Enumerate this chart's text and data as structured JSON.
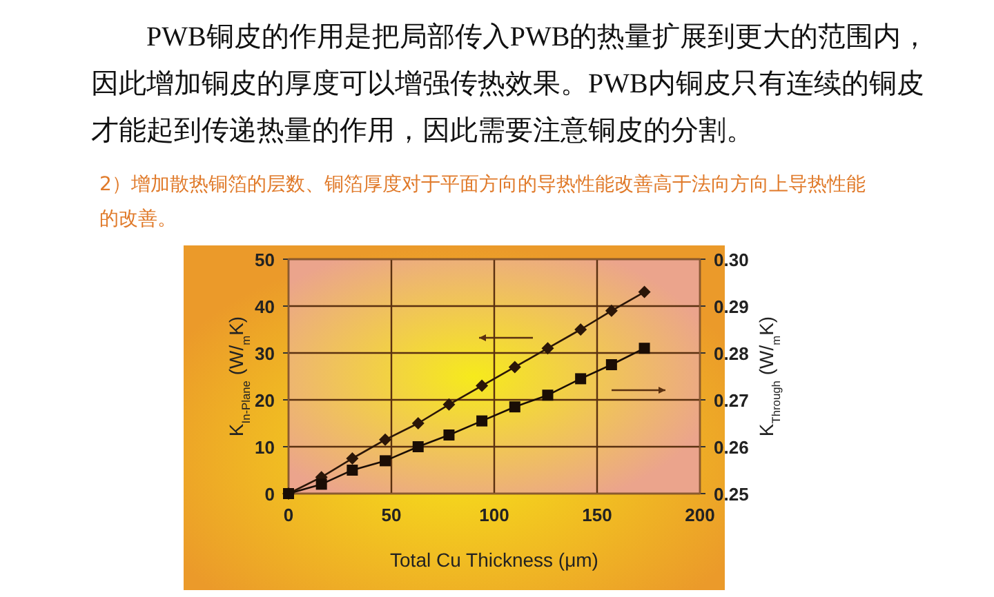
{
  "chart_data": {
    "type": "line",
    "annotations": [
      "PWB铜皮的作用是把局部传入PWB的热量扩展到更大的范围内，因此增加铜皮的厚度可以增强传热效果。PWB内铜皮只有连续的铜皮才能起到传递热量的作用，因此需要注意铜皮的分割。"
    ],
    "title": "2）增加散热铜箔的层数、铜箔厚度对于平面方向的导热性能改善高于法向方向上导热性能的改善。",
    "xlabel": "Total Cu Thickness (μm)",
    "ylabel": "K$_{In-Plane}$ (W/$_{m}$K)",
    "y2label": "K$_{Through}$ (W/$_{m}$K)",
    "xlim": [
      0,
      200
    ],
    "xticks": [
      0,
      50,
      100,
      150,
      200
    ],
    "ylim": [
      0,
      50
    ],
    "yticks": [
      0,
      10,
      20,
      30,
      40,
      50
    ],
    "y2lim": [
      0.25,
      0.3
    ],
    "y2ticks": [
      {
        "value": 0.25,
        "label": "0.25"
      },
      {
        "value": 0.26,
        "label": "0.26"
      },
      {
        "value": 0.27,
        "label": "0.27"
      },
      {
        "value": 0.28,
        "label": "0.28"
      },
      {
        "value": 0.29,
        "label": "0.29"
      },
      {
        "value": 0.3,
        "label": "0.30"
      }
    ],
    "grid": true,
    "series": [
      {
        "color": "#2b1608",
        "marker": "diamond",
        "x": [
          0,
          16,
          31,
          47,
          63,
          78,
          94,
          110,
          126,
          142,
          157,
          173
        ],
        "values": [
          0,
          3.5,
          7.5,
          11.5,
          15,
          19,
          23,
          27,
          31,
          35,
          39,
          43
        ]
      },
      {
        "color": "#1a0d05",
        "marker": "square",
        "axis": "y2",
        "x": [
          0,
          16,
          31,
          47,
          63,
          78,
          94,
          110,
          126,
          142,
          157,
          173
        ],
        "values": [
          0.25,
          0.252,
          0.255,
          0.257,
          0.26,
          0.2625,
          0.2655,
          0.2685,
          0.271,
          0.2745,
          0.2775,
          0.281
        ]
      }
    ]
  }
}
